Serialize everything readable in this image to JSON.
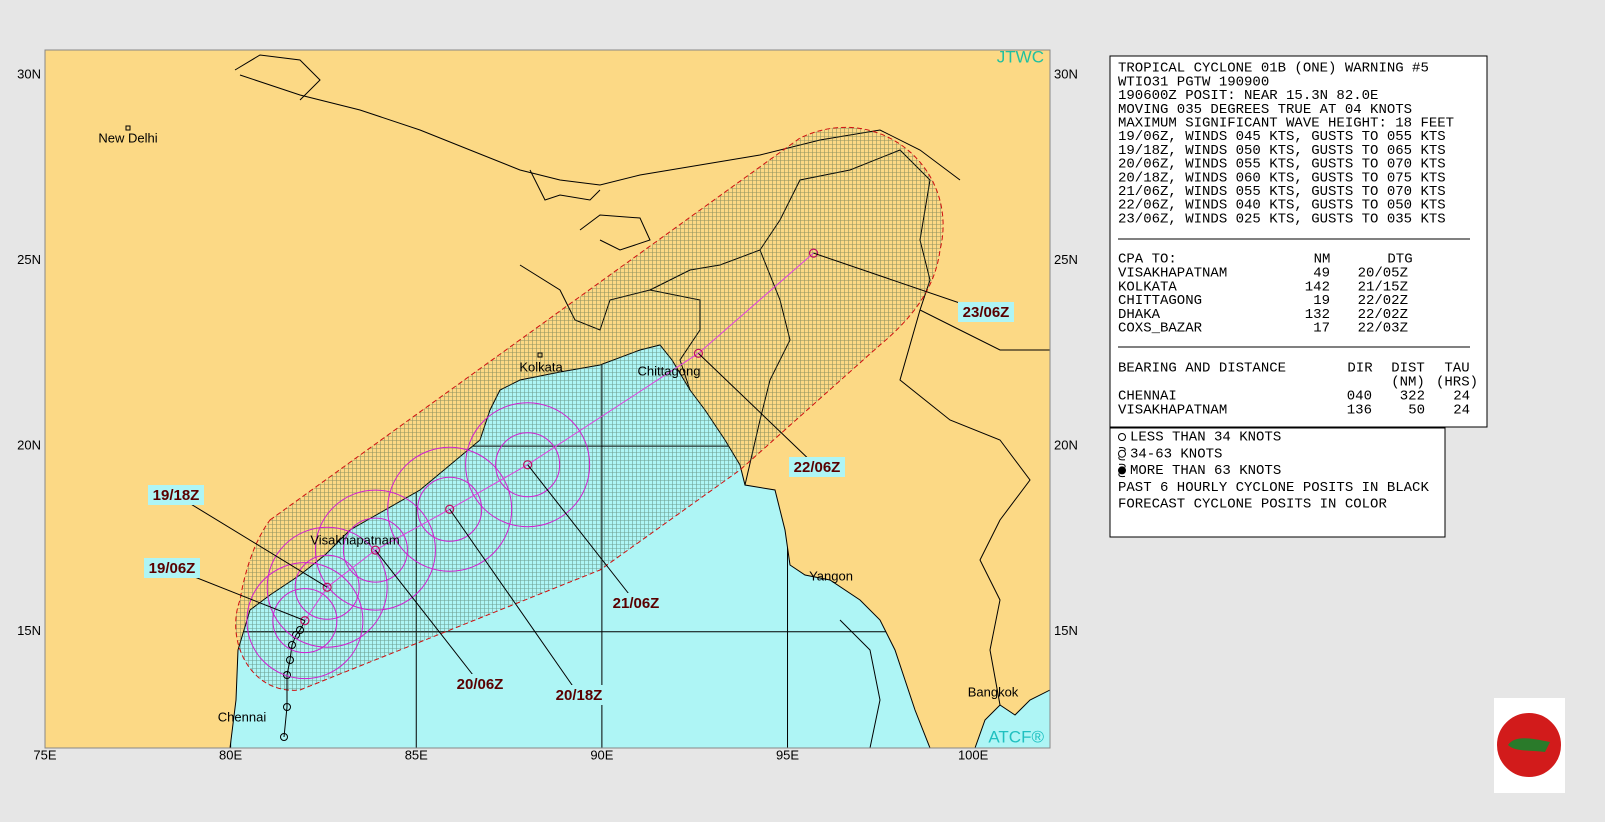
{
  "map": {
    "brand": "JTWC",
    "copyright": "ATCF®",
    "xlim": [
      75,
      102.07
    ],
    "ylim": [
      11.87,
      30.67
    ],
    "xticks": [
      {
        "value": 75,
        "label": "75E"
      },
      {
        "value": 80,
        "label": "80E"
      },
      {
        "value": 85,
        "label": "85E"
      },
      {
        "value": 90,
        "label": "90E"
      },
      {
        "value": 95,
        "label": "95E"
      },
      {
        "value": 100,
        "label": "100E"
      }
    ],
    "yticks": [
      {
        "value": 15,
        "label": "15N"
      },
      {
        "value": 20,
        "label": "20N"
      },
      {
        "value": 25,
        "label": "25N"
      },
      {
        "value": 30,
        "label": "30N"
      }
    ],
    "cities": [
      "New Delhi",
      "Kolkata",
      "Chittagong",
      "Visakhapatnam",
      "Yangon",
      "Chennai",
      "Bangkok"
    ],
    "track": [
      {
        "dtg": "19/06Z",
        "lon": 82.0,
        "lat": 15.3
      },
      {
        "dtg": "19/18Z",
        "lon": 82.6,
        "lat": 16.2
      },
      {
        "dtg": "20/06Z",
        "lon": 83.9,
        "lat": 17.2
      },
      {
        "dtg": "20/18Z",
        "lon": 85.9,
        "lat": 18.3
      },
      {
        "dtg": "21/06Z",
        "lon": 88.0,
        "lat": 19.5
      },
      {
        "dtg": "22/06Z",
        "lon": 92.6,
        "lat": 22.5
      },
      {
        "dtg": "23/06Z",
        "lon": 95.7,
        "lat": 25.2
      }
    ]
  },
  "warning": {
    "lines": [
      "TROPICAL CYCLONE 01B (ONE) WARNING #5",
      "WTIO31 PGTW 190900",
      "190600Z POSIT: NEAR 15.3N 82.0E",
      "MOVING 035 DEGREES TRUE AT 04 KNOTS",
      "MAXIMUM SIGNIFICANT WAVE HEIGHT: 18 FEET",
      "19/06Z, WINDS 045 KTS, GUSTS TO 055 KTS",
      "19/18Z, WINDS 050 KTS, GUSTS TO 065 KTS",
      "20/06Z, WINDS 055 KTS, GUSTS TO 070 KTS",
      "20/18Z, WINDS 060 KTS, GUSTS TO 075 KTS",
      "21/06Z, WINDS 055 KTS, GUSTS TO 070 KTS",
      "22/06Z, WINDS 040 KTS, GUSTS TO 050 KTS",
      "23/06Z, WINDS 025 KTS, GUSTS TO 035 KTS"
    ],
    "cpa": {
      "header": [
        "CPA TO:",
        "NM",
        "DTG"
      ],
      "rows": [
        [
          "VISAKHAPATNAM",
          "49",
          "20/05Z"
        ],
        [
          "KOLKATA",
          "142",
          "21/15Z"
        ],
        [
          "CHITTAGONG",
          "19",
          "22/02Z"
        ],
        [
          "DHAKA",
          "132",
          "22/02Z"
        ],
        [
          "COXS_BAZAR",
          "17",
          "22/03Z"
        ]
      ]
    },
    "bearing": {
      "header": [
        "BEARING AND DISTANCE",
        "DIR",
        "DIST",
        "TAU"
      ],
      "subheader": [
        "(NM)",
        "(HRS)"
      ],
      "rows": [
        [
          "CHENNAI",
          "040",
          "322",
          "24"
        ],
        [
          "VISAKHAPATNAM",
          "136",
          "50",
          "24"
        ]
      ]
    }
  },
  "legend": [
    "LESS THAN 34 KNOTS",
    "34-63 KNOTS",
    "MORE THAN 63 KNOTS",
    "PAST 6 HOURLY CYCLONE POSITS IN BLACK",
    "FORECAST CYCLONE POSITS IN COLOR"
  ]
}
